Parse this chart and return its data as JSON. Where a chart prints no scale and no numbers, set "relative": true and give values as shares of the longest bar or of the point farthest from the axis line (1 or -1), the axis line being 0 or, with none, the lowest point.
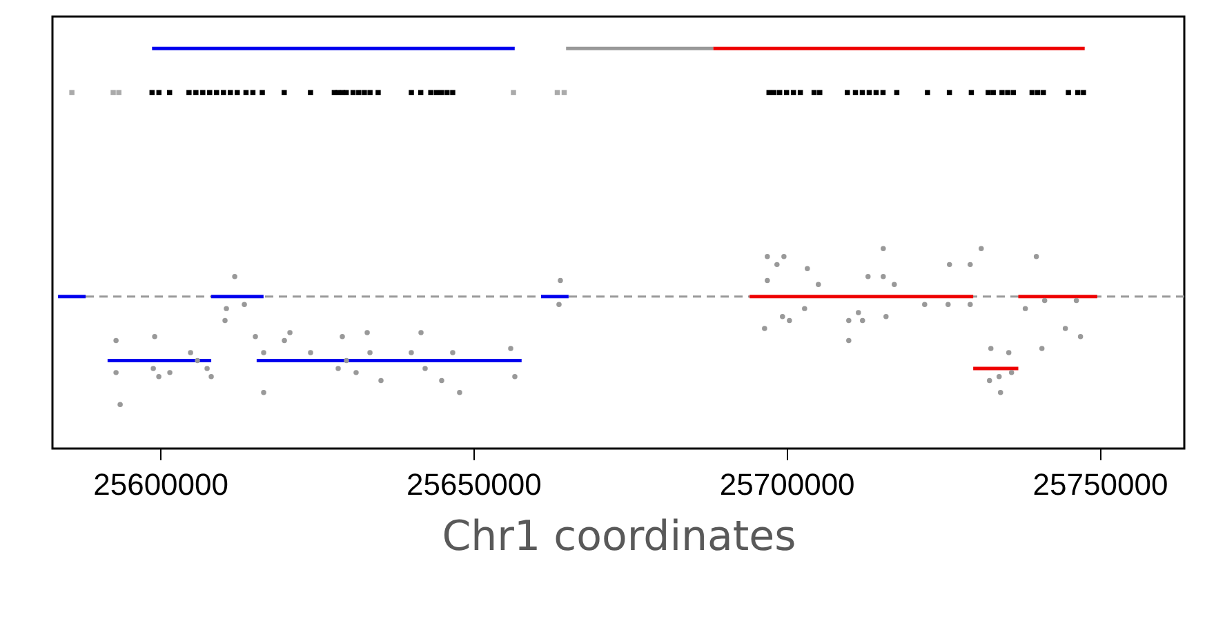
{
  "chart_data": {
    "type": "line",
    "relative": true,
    "xlabel": "Chr1 coordinates",
    "xlim": [
      25582800,
      25763500
    ],
    "xticks": [
      25600000,
      25650000,
      25700000,
      25750000
    ],
    "ref_lines": [
      {
        "axis": "y",
        "value": 0.38,
        "color": "#999999",
        "line_style": "dashed"
      }
    ],
    "series": [
      {
        "type": "scatter",
        "marker": "circle",
        "color": "#999999",
        "x": [
          25592950,
          25592950,
          25593610,
          25599120,
          25598900,
          25599780,
          25601540,
          25604850,
          25605950,
          25607490,
          25608150,
          25610570,
          25611900,
          25613440,
          25610350,
          25615200,
          25616520,
          25616520,
          25619830,
          25620710,
          25624010,
          25628420,
          25629080,
          25629740,
          25631280,
          25633050,
          25633490,
          25635250,
          25640090,
          25641640,
          25642300,
          25644940,
          25646700,
          25647800,
          25655960,
          25656620,
          25663890,
          25663670
        ],
        "values": [
          0.27,
          0.19,
          0.11,
          0.28,
          0.2,
          0.18,
          0.19,
          0.24,
          0.22,
          0.2,
          0.18,
          0.35,
          0.43,
          0.36,
          0.32,
          0.28,
          0.24,
          0.14,
          0.27,
          0.29,
          0.24,
          0.2,
          0.28,
          0.22,
          0.19,
          0.29,
          0.24,
          0.17,
          0.24,
          0.29,
          0.2,
          0.17,
          0.24,
          0.14,
          0.25,
          0.18,
          0.42,
          0.36
        ]
      },
      {
        "type": "scatter",
        "marker": "circle",
        "color": "#999999",
        "x": [
          25696930,
          25696930,
          25696490,
          25698470,
          25699580,
          25699350,
          25700460,
          25703320,
          25702880,
          25705080,
          25709930,
          25709930,
          25711470,
          25712130,
          25713010,
          25715880,
          25715440,
          25715440,
          25717200,
          25722050,
          25726010,
          25725790,
          25729320,
          25729320,
          25731080,
          25732620,
          25732400,
          25734160,
          25733940,
          25735480,
          25735920,
          25738120,
          25739880,
          25741210,
          25740770,
          25744510,
          25746270,
          25746930
        ],
        "values": [
          0.48,
          0.42,
          0.3,
          0.46,
          0.48,
          0.33,
          0.32,
          0.45,
          0.35,
          0.41,
          0.32,
          0.27,
          0.34,
          0.32,
          0.43,
          0.33,
          0.5,
          0.43,
          0.41,
          0.36,
          0.46,
          0.36,
          0.36,
          0.46,
          0.5,
          0.25,
          0.17,
          0.14,
          0.18,
          0.24,
          0.19,
          0.35,
          0.48,
          0.37,
          0.25,
          0.3,
          0.37,
          0.28
        ]
      },
      {
        "color": "#0000ee",
        "x": [
          25583700,
          25588100
        ],
        "values": [
          0.38,
          0.38
        ]
      },
      {
        "color": "#0000ee",
        "x": [
          25591600,
          25608150
        ],
        "values": [
          0.22,
          0.22
        ]
      },
      {
        "color": "#0000ee",
        "x": [
          25608150,
          25616500
        ],
        "values": [
          0.38,
          0.38
        ]
      },
      {
        "color": "#0000ee",
        "x": [
          25615400,
          25657700
        ],
        "values": [
          0.22,
          0.22
        ]
      },
      {
        "color": "#0000ee",
        "x": [
          25660800,
          25665200
        ],
        "values": [
          0.38,
          0.38
        ]
      },
      {
        "color": "#ee0000",
        "x": [
          25694100,
          25729800
        ],
        "values": [
          0.38,
          0.38
        ]
      },
      {
        "color": "#ee0000",
        "x": [
          25729800,
          25737000
        ],
        "values": [
          0.2,
          0.2
        ]
      },
      {
        "color": "#ee0000",
        "x": [
          25737000,
          25749600
        ],
        "values": [
          0.38,
          0.38
        ]
      },
      {
        "color": "#0000ee",
        "x": [
          25598700,
          25656600
        ],
        "values": [
          1,
          1
        ]
      },
      {
        "color": "#999999",
        "x": [
          25664800,
          25688300
        ],
        "values": [
          1,
          1
        ]
      },
      {
        "color": "#ee0000",
        "x": [
          25688300,
          25747600
        ],
        "values": [
          1,
          1
        ]
      },
      {
        "type": "scatter",
        "marker": "square",
        "color": "#aaaaaa",
        "x": [
          25585900,
          25592500,
          25593400,
          25656400,
          25663400,
          25664500
        ],
        "values": [
          0.89,
          0.89,
          0.89,
          0.89,
          0.89,
          0.89
        ]
      },
      {
        "type": "scatter",
        "marker": "square",
        "color": "#000000",
        "x": [
          25598700,
          25599800,
          25601500,
          25604600,
          25605700,
          25606800,
          25607900,
          25609000,
          25610100,
          25611200,
          25612300,
          25613700,
          25614800,
          25616300,
          25619800,
          25624000,
          25627800,
          25628400,
          25629100,
          25629700,
          25630800,
          25631700,
          25632600,
          25633500,
          25634800,
          25640100,
          25641600,
          25643200,
          25644100,
          25644900,
          25645800,
          25646700,
          25697200,
          25698000,
          25698900,
          25700000,
          25701100,
          25702200,
          25704400,
          25705300,
          25709700,
          25711000,
          25712100,
          25713200,
          25714300,
          25715400,
          25717600,
          25722500,
          25726000,
          25729500,
          25732200,
          25733000,
          25734400,
          25735300,
          25736200,
          25739200,
          25740100,
          25741000,
          25745000,
          25746500,
          25747400
        ],
        "values": [
          0.89,
          0.89,
          0.89,
          0.89,
          0.89,
          0.89,
          0.89,
          0.89,
          0.89,
          0.89,
          0.89,
          0.89,
          0.89,
          0.89,
          0.89,
          0.89,
          0.89,
          0.89,
          0.89,
          0.89,
          0.89,
          0.89,
          0.89,
          0.89,
          0.89,
          0.89,
          0.89,
          0.89,
          0.89,
          0.89,
          0.89,
          0.89,
          0.89,
          0.89,
          0.89,
          0.89,
          0.89,
          0.89,
          0.89,
          0.89,
          0.89,
          0.89,
          0.89,
          0.89,
          0.89,
          0.89,
          0.89,
          0.89,
          0.89,
          0.89,
          0.89,
          0.89,
          0.89,
          0.89,
          0.89,
          0.89,
          0.89,
          0.89,
          0.89,
          0.89,
          0.89
        ]
      }
    ]
  }
}
